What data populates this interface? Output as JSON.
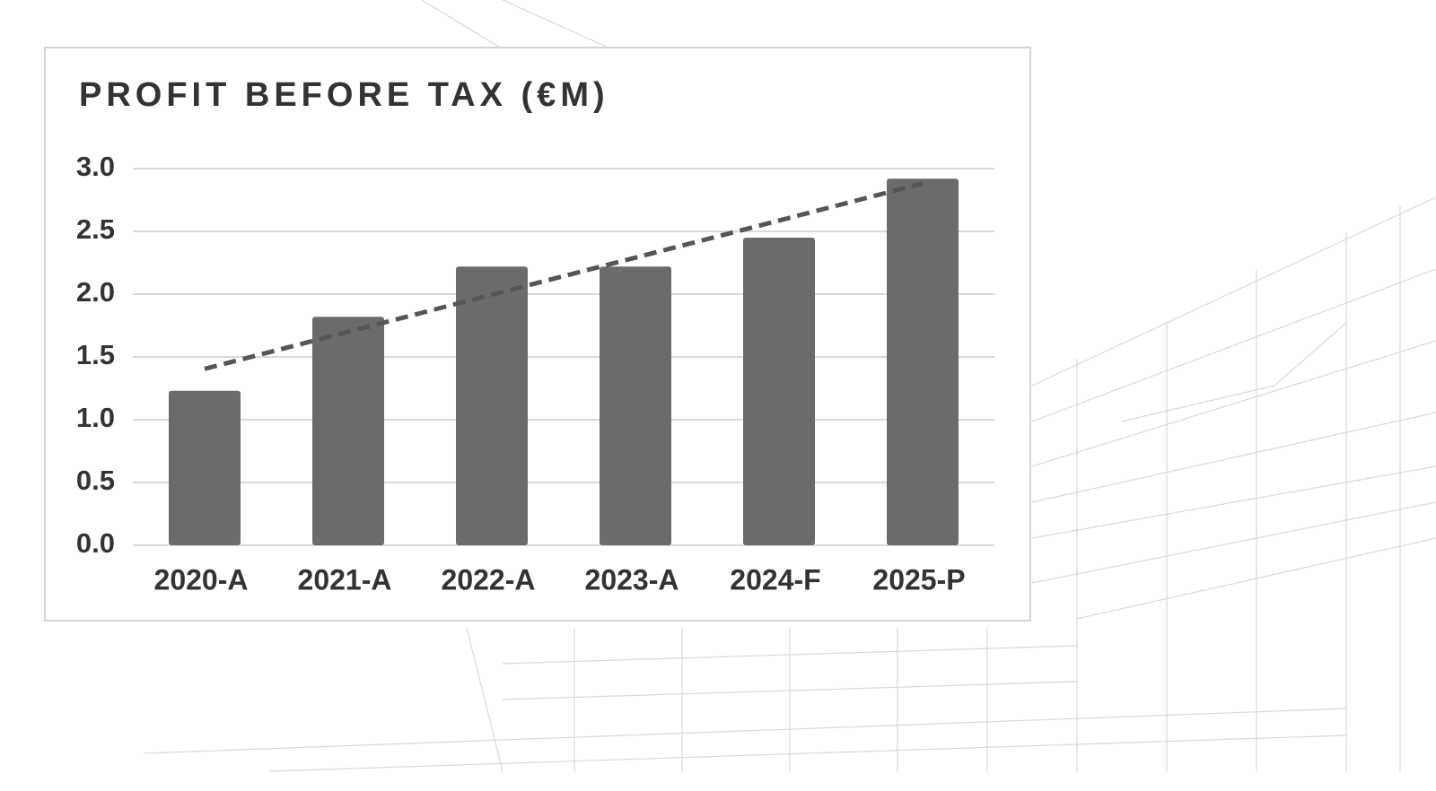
{
  "chart_data": {
    "type": "bar",
    "title": "PROFIT BEFORE TAX (€M)",
    "categories": [
      "2020-A",
      "2021-A",
      "2022-A",
      "2023-A",
      "2024-F",
      "2025-P"
    ],
    "values": [
      1.23,
      1.82,
      2.22,
      2.22,
      2.45,
      2.92
    ],
    "color": "#6b6b6b",
    "ylim": [
      0,
      3
    ],
    "yticks": [
      {
        "value": 0,
        "label": "0.0"
      },
      0.5,
      {
        "value": 1,
        "label": "1.0"
      },
      1.5,
      {
        "value": 2,
        "label": "2.0"
      },
      2.5,
      {
        "value": 3,
        "label": "3.0"
      }
    ],
    "grid": true,
    "trendline": true
  }
}
